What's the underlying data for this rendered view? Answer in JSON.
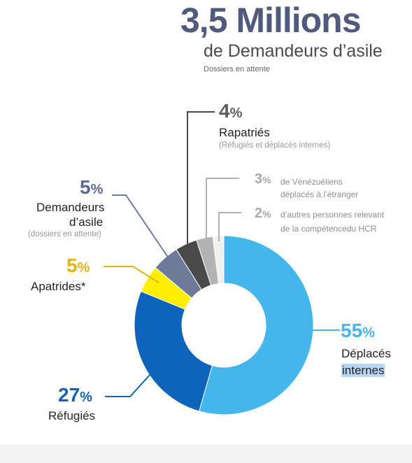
{
  "header": {
    "headline": "3,5 Millions",
    "subheadline": "de Demandeurs d’asile",
    "note": "Dossiers en attente"
  },
  "colors": {
    "headline": "#505a7e",
    "leader_gray": "#b0b0b0",
    "leader_dark": "#4a4a4a"
  },
  "chart_data": {
    "type": "pie",
    "donut": true,
    "unit": "%",
    "slices": [
      {
        "key": "deplaces",
        "value": 55,
        "value_label": "55",
        "label_lines": [
          "Déplacés",
          "internes"
        ],
        "sublabel": "",
        "color": "#45b6ec",
        "label_color": "#45b6ec"
      },
      {
        "key": "refugies",
        "value": 27,
        "value_label": "27",
        "label_lines": [
          "Réfugiés"
        ],
        "sublabel": "",
        "color": "#0e63ba",
        "label_color": "#1462b4"
      },
      {
        "key": "apatrides",
        "value": 5,
        "value_label": "5",
        "label_lines": [
          "Apatrides*"
        ],
        "sublabel": "",
        "color": "#ffee00",
        "label_color": "#e2b318"
      },
      {
        "key": "demandeurs",
        "value": 5,
        "value_label": "5",
        "label_lines": [
          "Demandeurs",
          "d’asile"
        ],
        "sublabel": "(dossiers en attente)",
        "color": "#6e7b98",
        "label_color": "#5c6b8f"
      },
      {
        "key": "rapatries",
        "value": 4,
        "value_label": "4",
        "label_lines": [
          "Rapatriés"
        ],
        "sublabel": "(Réfugiés et déplacés internes)",
        "color": "#4a4a4a",
        "label_color": "#5e5e5e"
      },
      {
        "key": "venezueliens",
        "value": 3,
        "value_label": "3",
        "label_lines": [
          "de Vénézuéliens",
          "déplacés à l’étranger"
        ],
        "sublabel": "",
        "color": "#b3b3b3",
        "label_color": "#a8a8a8"
      },
      {
        "key": "autres",
        "value": 2,
        "value_label": "2",
        "label_lines": [
          "d’autres personnes relevant",
          "de la compétencedu HCR"
        ],
        "sublabel": "",
        "color": "#f0f0f0",
        "label_color": "#a8a8a8"
      }
    ]
  }
}
